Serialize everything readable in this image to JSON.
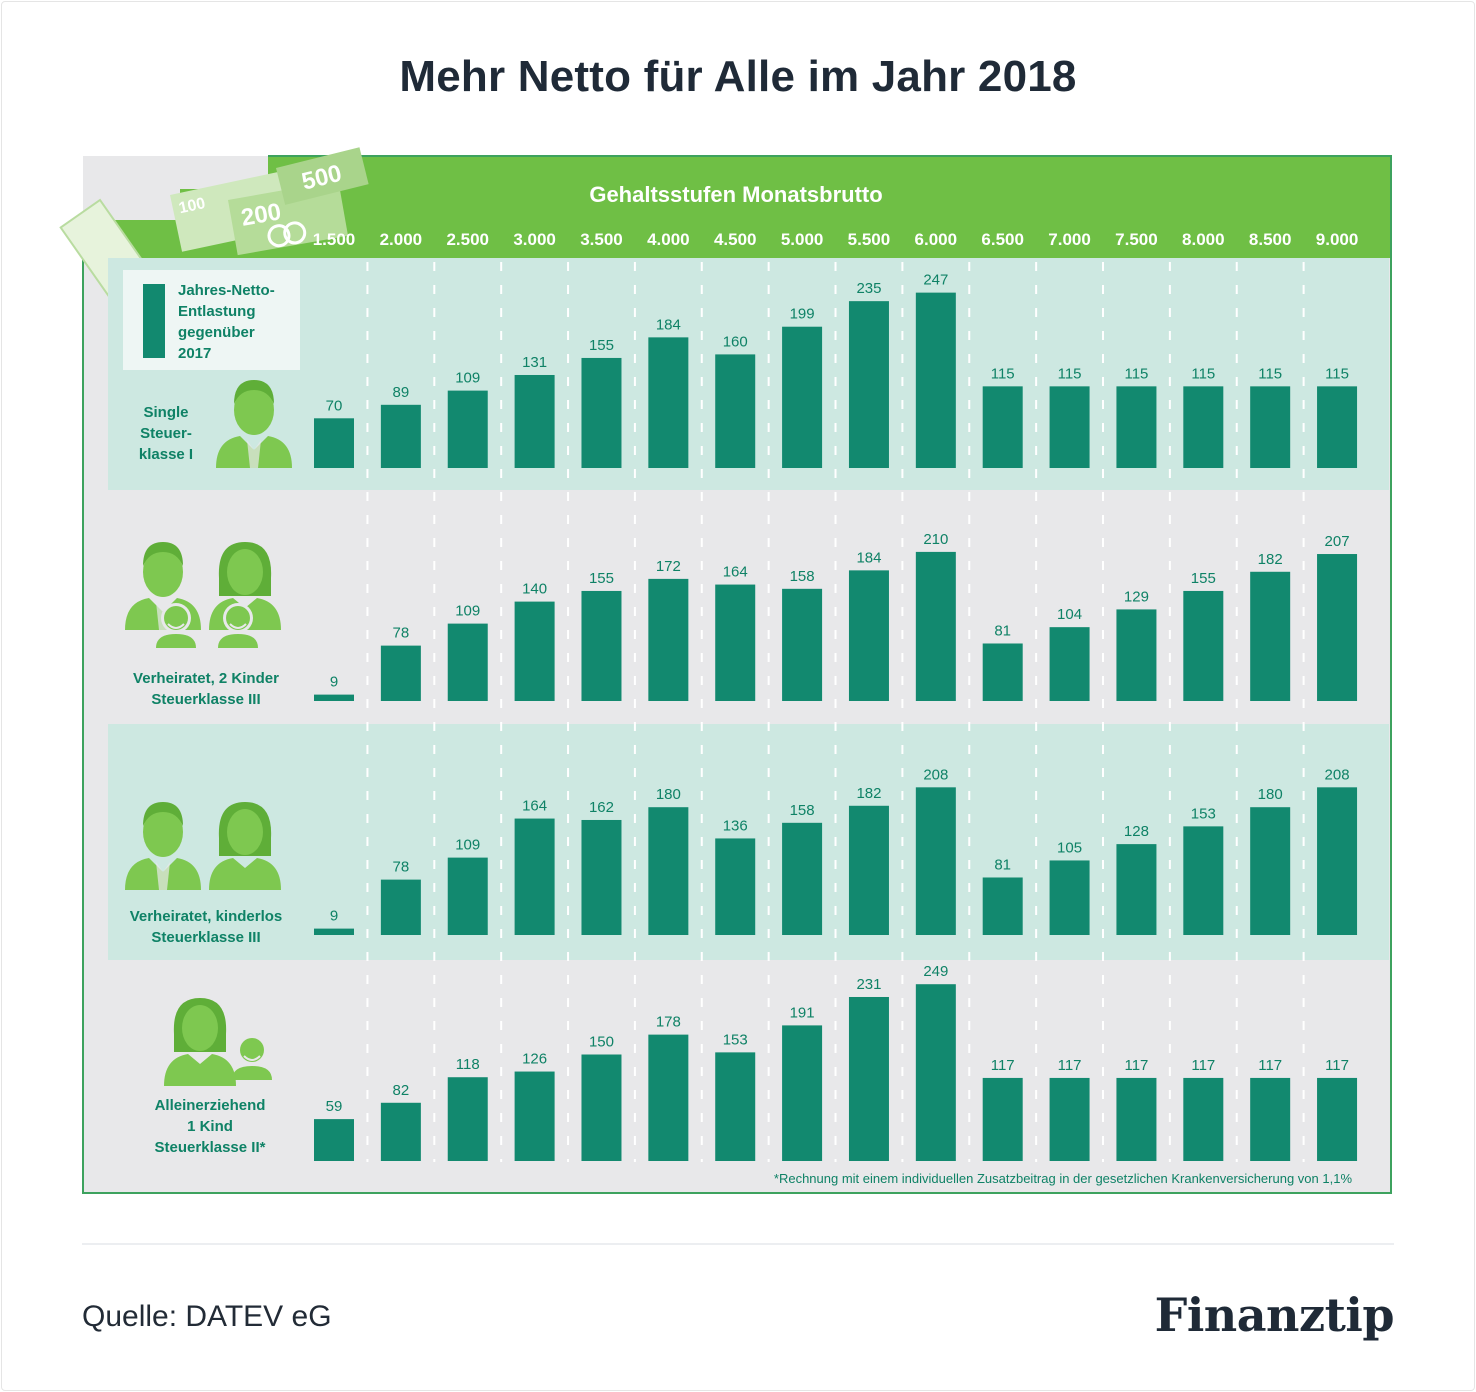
{
  "page": {
    "title": "Mehr Netto für Alle im Jahr 2018",
    "source": "Quelle: DATEV eG",
    "brand": "Finanztip"
  },
  "colors": {
    "bar": "#12896f",
    "header_green": "#6fbf45",
    "band": "#cde8e1",
    "panel_bg": "#e8e8ea",
    "icon_green": "#7ec850",
    "label_text": "#0f8266"
  },
  "icons": {
    "banknotes": "banknotes-icon",
    "single": "man-icon",
    "married_kids": "family-two-kids-icon",
    "married": "couple-icon",
    "single_parent": "woman-child-icon"
  },
  "banknote_labels": [
    "500",
    "200",
    "100"
  ],
  "legend": {
    "label_lines": [
      "Jahres-Netto-",
      "Entlastung",
      "gegenüber",
      "2017"
    ]
  },
  "footnote": "*Rechnung mit einem individuellen Zusatzbeitrag in der gesetzlichen Krankenversicherung von 1,1%",
  "chart_data": {
    "type": "bar",
    "title": "Gehaltsstufen Monatsbrutto",
    "categories": [
      "1.500",
      "2.000",
      "2.500",
      "3.000",
      "3.500",
      "4.000",
      "4.500",
      "5.000",
      "5.500",
      "6.000",
      "6.500",
      "7.000",
      "7.500",
      "8.000",
      "8.500",
      "9.000"
    ],
    "series": [
      {
        "name": "Single Steuerklasse I",
        "label_lines": [
          "Single",
          "Steuer-",
          "klasse I"
        ],
        "values": [
          70,
          89,
          109,
          131,
          155,
          184,
          160,
          199,
          235,
          247,
          115,
          115,
          115,
          115,
          115,
          115
        ]
      },
      {
        "name": "Verheiratet, 2 Kinder Steuerklasse III",
        "label_lines": [
          "Verheiratet, 2 Kinder",
          "Steuerklasse III"
        ],
        "values": [
          9,
          78,
          109,
          140,
          155,
          172,
          164,
          158,
          184,
          210,
          81,
          104,
          129,
          155,
          182,
          207
        ]
      },
      {
        "name": "Verheiratet, kinderlos Steuerklasse III",
        "label_lines": [
          "Verheiratet, kinderlos",
          "Steuerklasse III"
        ],
        "values": [
          9,
          78,
          109,
          164,
          162,
          180,
          136,
          158,
          182,
          208,
          81,
          105,
          128,
          153,
          180,
          208
        ]
      },
      {
        "name": "Alleinerziehend 1 Kind Steuerklasse II*",
        "label_lines": [
          "Alleinerziehend",
          "1 Kind",
          "Steuerklasse II*"
        ],
        "values": [
          59,
          82,
          118,
          126,
          150,
          178,
          153,
          191,
          231,
          249,
          117,
          117,
          117,
          117,
          117,
          117
        ]
      }
    ]
  }
}
